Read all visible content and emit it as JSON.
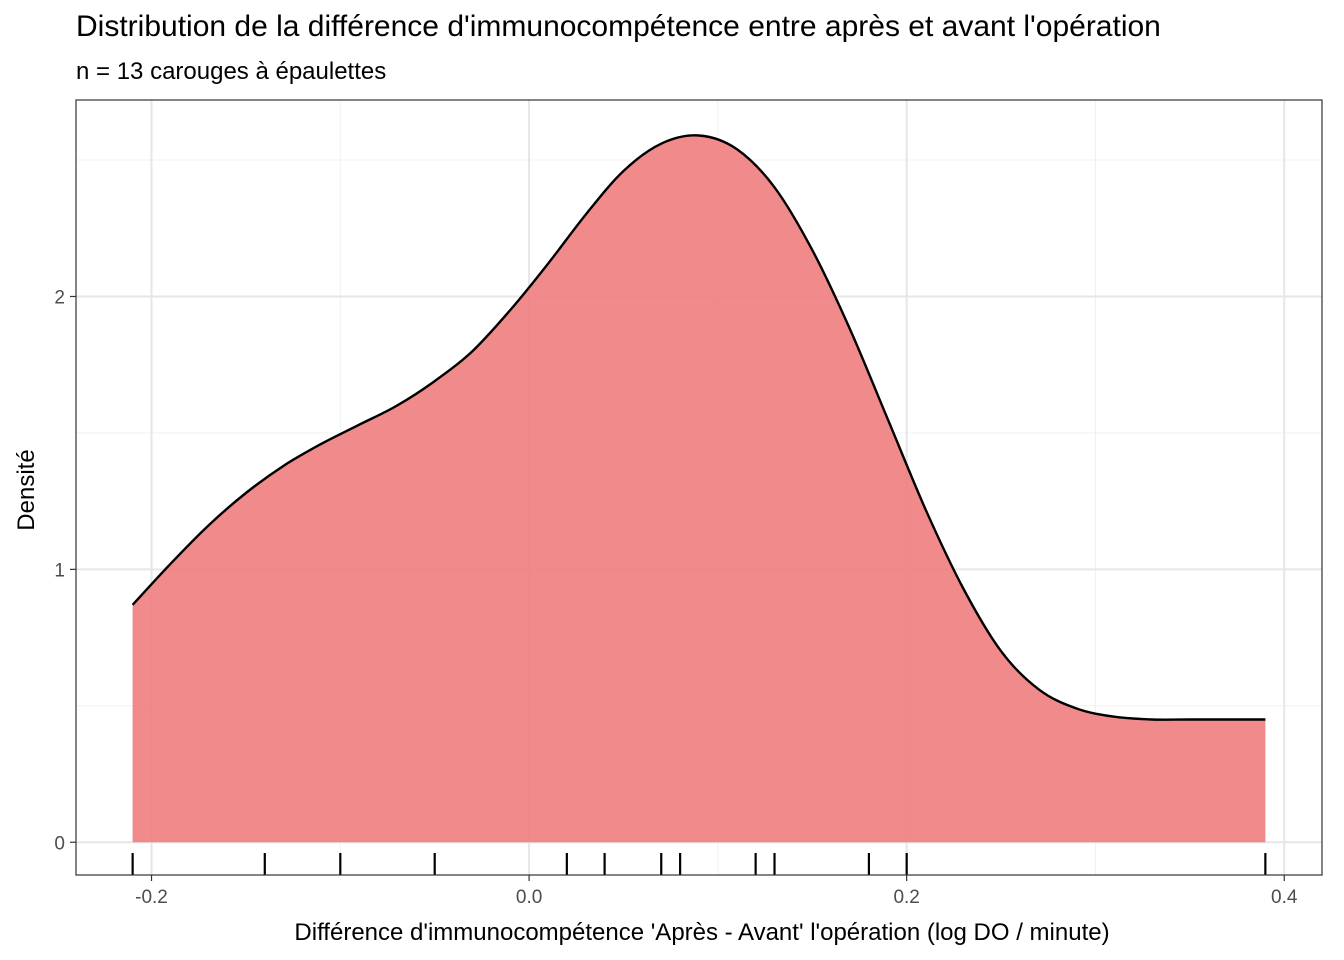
{
  "chart_data": {
    "type": "area",
    "title": "Distribution de la différence d'immunocompétence entre après et avant l'opération",
    "subtitle": "n = 13 carouges à épaulettes",
    "xlabel": "Différence d'immunocompétence 'Après - Avant' l'opération (log DO / minute)",
    "ylabel": "Densité",
    "xlim": [
      -0.24,
      0.42
    ],
    "ylim": [
      -0.12,
      2.72
    ],
    "x_ticks": [
      -0.2,
      0.0,
      0.2,
      0.4
    ],
    "x_tick_labels": [
      "-0.2",
      "0.0",
      "0.2",
      "0.4"
    ],
    "y_ticks": [
      0,
      1,
      2
    ],
    "y_tick_labels": [
      "0",
      "1",
      "2"
    ],
    "grid": true,
    "fill_color": "#F08080",
    "line_color": "#000000",
    "density": {
      "x": [
        -0.21,
        -0.19,
        -0.17,
        -0.15,
        -0.13,
        -0.11,
        -0.09,
        -0.07,
        -0.05,
        -0.03,
        -0.01,
        0.01,
        0.03,
        0.05,
        0.07,
        0.09,
        0.11,
        0.13,
        0.15,
        0.17,
        0.19,
        0.21,
        0.23,
        0.25,
        0.27,
        0.29,
        0.31,
        0.33,
        0.35,
        0.37,
        0.39
      ],
      "y": [
        0.87,
        1.02,
        1.16,
        1.28,
        1.38,
        1.46,
        1.53,
        1.6,
        1.69,
        1.8,
        1.95,
        2.12,
        2.3,
        2.46,
        2.56,
        2.59,
        2.54,
        2.4,
        2.17,
        1.88,
        1.55,
        1.22,
        0.93,
        0.7,
        0.56,
        0.49,
        0.46,
        0.45,
        0.45,
        0.45,
        0.45
      ]
    },
    "rug": [
      -0.21,
      -0.14,
      -0.1,
      -0.05,
      0.02,
      0.04,
      0.07,
      0.08,
      0.12,
      0.13,
      0.18,
      0.2,
      0.39
    ]
  }
}
